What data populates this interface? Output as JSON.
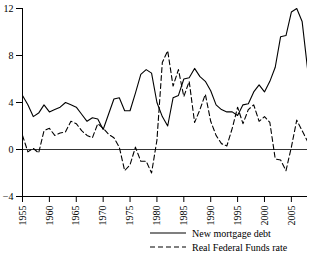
{
  "chart_data": {
    "type": "line",
    "x": [
      1955,
      1956,
      1957,
      1958,
      1959,
      1960,
      1961,
      1962,
      1963,
      1964,
      1965,
      1966,
      1967,
      1968,
      1969,
      1970,
      1971,
      1972,
      1973,
      1974,
      1975,
      1976,
      1977,
      1978,
      1979,
      1980,
      1981,
      1982,
      1983,
      1984,
      1985,
      1986,
      1987,
      1988,
      1989,
      1990,
      1991,
      1992,
      1993,
      1994,
      1995,
      1996,
      1997,
      1998,
      1999,
      2000,
      2001,
      2002,
      2003,
      2004,
      2005,
      2006,
      2007,
      2008
    ],
    "series": [
      {
        "name": "New mortgage debt",
        "color": "#000000",
        "line_style": "solid",
        "values": [
          4.6,
          3.8,
          2.8,
          3.1,
          3.8,
          3.2,
          3.4,
          3.6,
          4.0,
          3.8,
          3.6,
          3.0,
          2.4,
          2.7,
          2.6,
          1.7,
          3.0,
          4.3,
          4.4,
          3.3,
          3.3,
          4.8,
          6.4,
          6.8,
          6.5,
          4.0,
          2.8,
          2.0,
          4.4,
          4.6,
          6.0,
          6.1,
          6.9,
          6.2,
          5.8,
          5.0,
          3.8,
          3.4,
          3.2,
          3.2,
          2.9,
          3.8,
          3.9,
          4.9,
          5.5,
          4.9,
          5.8,
          7.0,
          9.6,
          9.7,
          11.7,
          12.0,
          10.9,
          6.9
        ]
      },
      {
        "name": "Real Federal Funds rate",
        "color": "#000000",
        "line_style": "dashed",
        "values": [
          1.2,
          -0.2,
          0.1,
          -0.3,
          1.6,
          1.8,
          1.2,
          1.4,
          1.5,
          2.4,
          2.2,
          1.6,
          1.2,
          1.0,
          2.2,
          1.8,
          1.3,
          1.0,
          0.2,
          -1.8,
          -1.3,
          0.2,
          -1.0,
          -1.0,
          -2.0,
          0.8,
          7.4,
          8.4,
          5.4,
          6.8,
          4.5,
          5.8,
          2.3,
          3.4,
          4.7,
          2.4,
          1.2,
          0.5,
          0.3,
          1.8,
          3.6,
          2.2,
          3.4,
          3.8,
          2.4,
          2.8,
          2.3,
          -0.8,
          -0.9,
          -1.8,
          0.2,
          2.5,
          1.6,
          0.7
        ]
      }
    ],
    "xlim": [
      1955,
      2008
    ],
    "xticks": [
      1955,
      1960,
      1965,
      1970,
      1975,
      1980,
      1985,
      1990,
      1995,
      2000,
      2005
    ],
    "ylim": [
      -4,
      12
    ],
    "yticks": [
      -4,
      0,
      4,
      8,
      12
    ],
    "grid": false,
    "legend": "bottom-right"
  }
}
